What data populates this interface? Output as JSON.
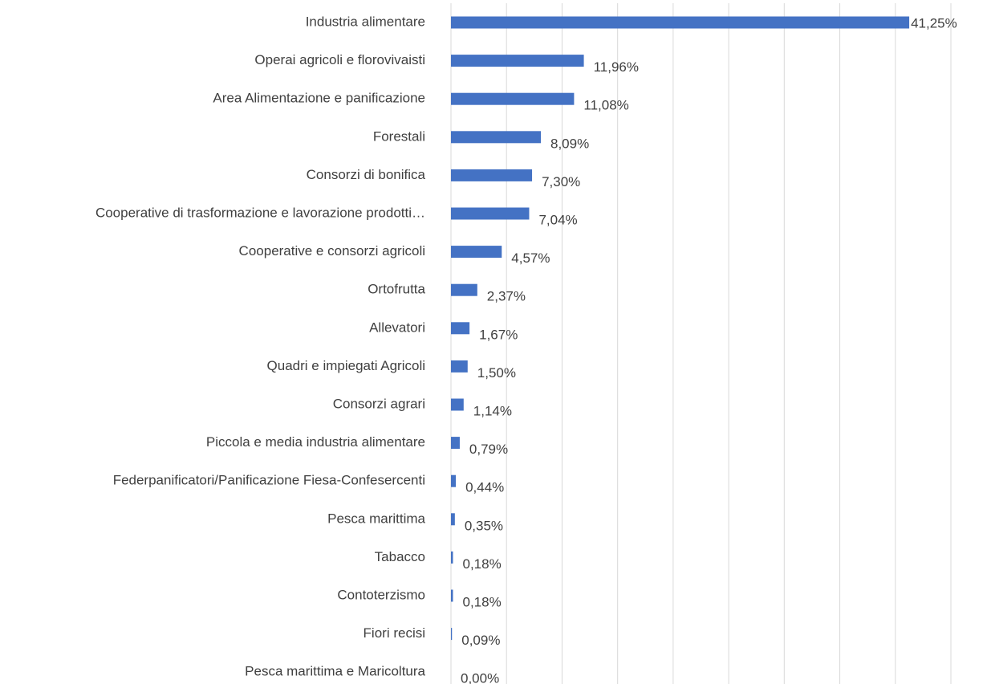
{
  "chart_data": {
    "type": "bar",
    "orientation": "horizontal",
    "categories": [
      "Industria alimentare",
      "Operai agricoli e florovivaisti",
      "Area Alimentazione e panificazione",
      "Forestali",
      "Consorzi di bonifica",
      "Cooperative di trasformazione e lavorazione prodotti…",
      "Cooperative e consorzi agricoli",
      "Ortofrutta",
      "Allevatori",
      "Quadri e impiegati Agricoli",
      "Consorzi agrari",
      "Piccola e media industria alimentare",
      "Federpanificatori/Panificazione Fiesa-Confesercenti",
      "Pesca marittima",
      "Tabacco",
      "Contoterzismo",
      "Fiori recisi",
      "Pesca marittima e Maricoltura"
    ],
    "values": [
      41.25,
      11.96,
      11.08,
      8.09,
      7.3,
      7.04,
      4.57,
      2.37,
      1.67,
      1.5,
      1.14,
      0.79,
      0.44,
      0.35,
      0.18,
      0.18,
      0.09,
      0.0
    ],
    "value_labels": [
      "41,25%",
      "11,96%",
      "11,08%",
      "8,09%",
      "7,30%",
      "7,04%",
      "4,57%",
      "2,37%",
      "1,67%",
      "1,50%",
      "1,14%",
      "0,79%",
      "0,44%",
      "0,35%",
      "0,18%",
      "0,18%",
      "0,09%",
      "0,00%"
    ],
    "color": "#4472c4",
    "xlim": [
      0,
      45
    ],
    "xticks": [
      0,
      5,
      10,
      15,
      20,
      25,
      30,
      35,
      40,
      45
    ],
    "grid": true
  }
}
